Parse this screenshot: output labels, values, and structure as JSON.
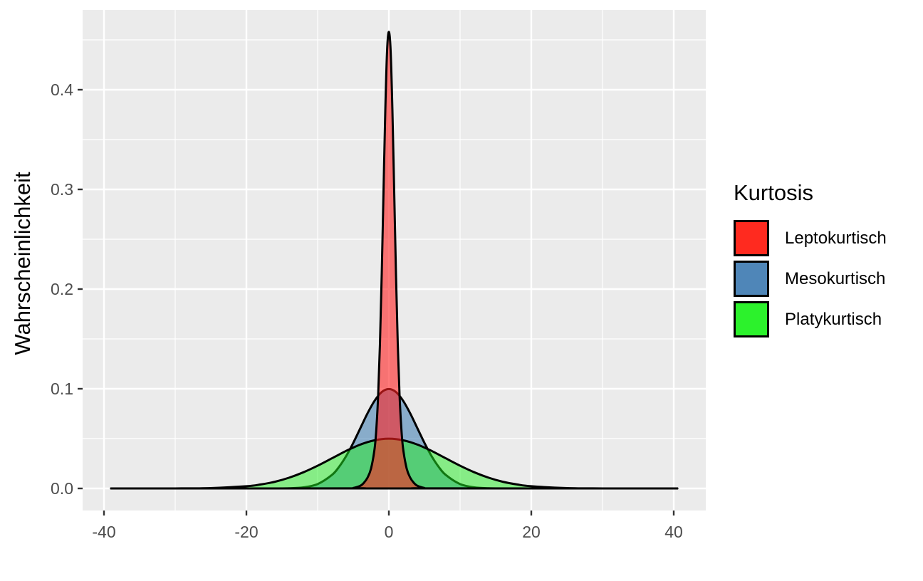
{
  "chart_data": {
    "type": "area",
    "title": "",
    "xlabel": "",
    "ylabel": "Wahrscheinlichkeit",
    "xlim": [
      -42.5,
      44.5
    ],
    "ylim": [
      -0.023,
      0.481
    ],
    "x_ticks": [
      -40,
      -20,
      0,
      20,
      40
    ],
    "x_tick_labels": [
      "-40",
      "-20",
      "0",
      "20",
      "40"
    ],
    "y_ticks": [
      0.0,
      0.1,
      0.2,
      0.3,
      0.4
    ],
    "y_tick_labels": [
      "0.0",
      "0.1",
      "0.2",
      "0.3",
      "0.4"
    ],
    "grid": true,
    "legend": {
      "title": "Kurtosis",
      "position": "right"
    },
    "series": [
      {
        "name": "Mesokurtisch",
        "color": "#4682B4",
        "opacity": 0.6,
        "x": [
          -39,
          -20,
          -16,
          -14,
          -12,
          -10,
          -8,
          -7,
          -6,
          -5,
          -4,
          -3,
          -2,
          -1,
          0,
          1,
          2,
          3,
          4,
          5,
          6,
          7,
          8,
          10,
          12,
          14,
          16,
          20,
          40.5
        ],
        "y": [
          0,
          0,
          3e-05,
          0.0002,
          0.0011,
          0.0044,
          0.0135,
          0.0216,
          0.0324,
          0.0457,
          0.0605,
          0.0753,
          0.088,
          0.0967,
          0.0997,
          0.0967,
          0.088,
          0.0753,
          0.0605,
          0.0457,
          0.0324,
          0.0216,
          0.0135,
          0.0044,
          0.0011,
          0.0002,
          3e-05,
          0,
          0
        ]
      },
      {
        "name": "Platykurtisch",
        "color": "#22EE22",
        "opacity": 0.5,
        "x": [
          -39,
          -30,
          -25,
          -20,
          -18,
          -16,
          -14,
          -12,
          -10,
          -8,
          -6,
          -5,
          -4,
          -3,
          -2,
          -1,
          0,
          1,
          2,
          3,
          4,
          5,
          6,
          8,
          10,
          12,
          14,
          16,
          18,
          20,
          25,
          30,
          40.5
        ],
        "y": [
          0,
          4e-05,
          0.0004,
          0.0022,
          0.004,
          0.0067,
          0.0108,
          0.0162,
          0.0228,
          0.0302,
          0.0377,
          0.041,
          0.044,
          0.0465,
          0.0483,
          0.0495,
          0.0499,
          0.0495,
          0.0483,
          0.0465,
          0.044,
          0.041,
          0.0377,
          0.0302,
          0.0228,
          0.0162,
          0.0108,
          0.0067,
          0.004,
          0.0022,
          0.0004,
          4e-05,
          0
        ]
      },
      {
        "name": "Leptokurtisch",
        "color": "#FF2222",
        "opacity": 0.6,
        "x": [
          -39,
          -6,
          -5,
          -4,
          -3.5,
          -3,
          -2.5,
          -2,
          -1.75,
          -1.5,
          -1.25,
          -1,
          -0.75,
          -0.5,
          -0.25,
          0,
          0.25,
          0.5,
          0.75,
          1,
          1.25,
          1.5,
          1.75,
          2,
          2.5,
          3,
          3.5,
          4,
          5,
          6,
          40.5
        ],
        "y": [
          0,
          6e-05,
          0.0005,
          0.0027,
          0.0057,
          0.0108,
          0.02,
          0.04,
          0.0605,
          0.094,
          0.145,
          0.215,
          0.298,
          0.379,
          0.439,
          0.458,
          0.439,
          0.379,
          0.298,
          0.215,
          0.145,
          0.094,
          0.0605,
          0.04,
          0.02,
          0.0108,
          0.0057,
          0.0027,
          0.0005,
          6e-05,
          0
        ]
      }
    ]
  },
  "legend": {
    "title": "Kurtosis",
    "items": [
      {
        "label": "Leptokurtisch",
        "color": "#FF2A1F"
      },
      {
        "label": "Mesokurtisch",
        "color": "#4F86B8"
      },
      {
        "label": "Platykurtisch",
        "color": "#2CF22C"
      }
    ]
  },
  "axes": {
    "ylabel": "Wahrscheinlichkeit",
    "x_tick_labels": [
      "-40",
      "-20",
      "0",
      "20",
      "40"
    ],
    "y_tick_labels": [
      "0.0",
      "0.1",
      "0.2",
      "0.3",
      "0.4"
    ]
  }
}
